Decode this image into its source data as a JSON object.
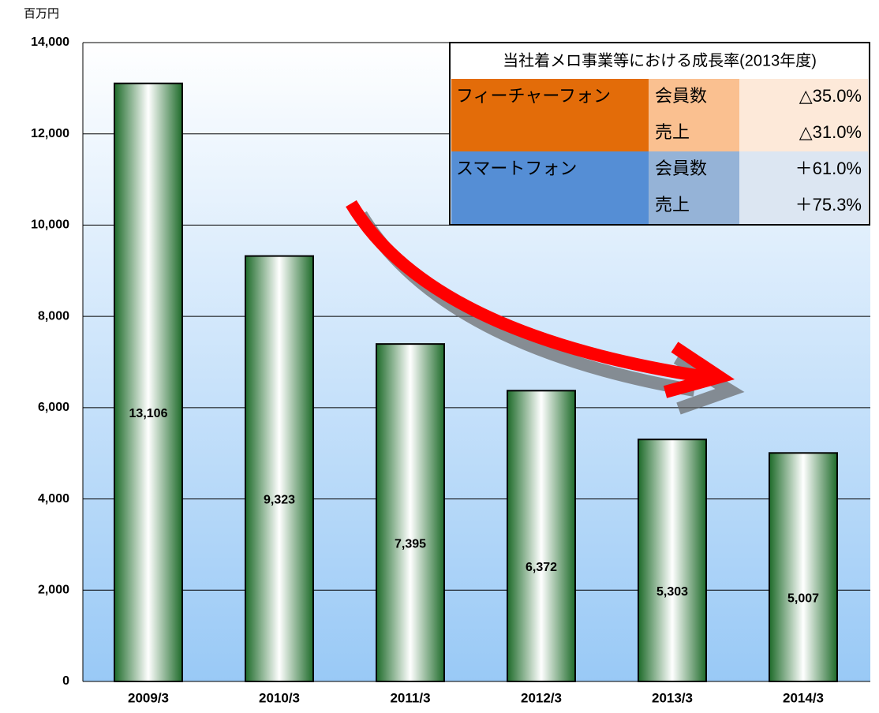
{
  "chart_data": {
    "type": "bar",
    "unit_label": "百万円",
    "categories": [
      "2009/3",
      "2010/3",
      "2011/3",
      "2012/3",
      "2013/3",
      "2014/3"
    ],
    "values": [
      13106,
      9323,
      7395,
      6372,
      5303,
      5007
    ],
    "value_labels": [
      "13,106",
      "9,323",
      "7,395",
      "6,372",
      "5,303",
      "5,007"
    ],
    "ylim": [
      0,
      14000
    ],
    "yticks": [
      0,
      {
        "value": 2000,
        "label": "2,000"
      },
      {
        "value": 4000,
        "label": "4,000"
      },
      {
        "value": 6000,
        "label": "6,000"
      },
      {
        "value": 8000,
        "label": "8,000"
      },
      {
        "value": 10000,
        "label": "10,000"
      },
      {
        "value": 12000,
        "label": "12,000"
      },
      {
        "value": 14000,
        "label": "14,000"
      }
    ],
    "grid": true,
    "color": "#1e6b2a",
    "table": {
      "title": "当社着メロ事業等における成長率(2013年度)",
      "groups": [
        {
          "name": "フィーチャーフォン",
          "color": "#e36c09",
          "mid": "#fac090",
          "light": "#fde9d9",
          "items": [
            {
              "label": "会員数",
              "value": "△35.0%"
            },
            {
              "label": "売上",
              "value": "△31.0%"
            }
          ]
        },
        {
          "name": "スマートフォン",
          "color": "#558ed5",
          "mid": "#95b3d7",
          "light": "#dce6f2",
          "items": [
            {
              "label": "会員数",
              "value": "＋61.0%"
            },
            {
              "label": "売上",
              "value": "＋75.3%"
            }
          ]
        }
      ]
    }
  }
}
